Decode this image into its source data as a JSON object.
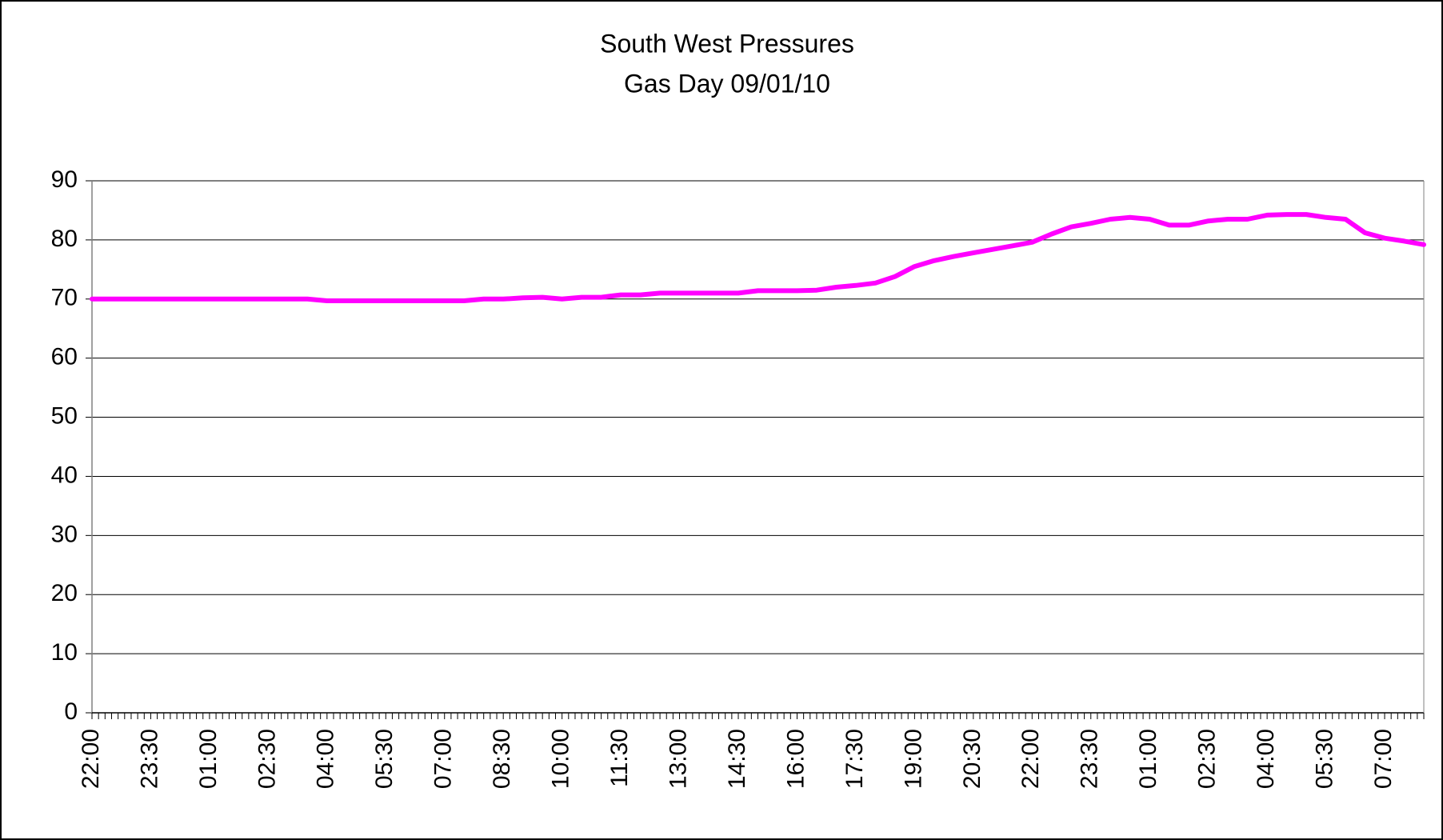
{
  "chart_data": {
    "type": "line",
    "title": "South West Pressures",
    "subtitle": "Gas Day 09/01/10",
    "categories": [
      "22:00",
      null,
      null,
      "23:30",
      null,
      null,
      "01:00",
      null,
      null,
      "02:30",
      null,
      null,
      "04:00",
      null,
      null,
      "05:30",
      null,
      null,
      "07:00",
      null,
      null,
      "08:30",
      null,
      null,
      "10:00",
      null,
      null,
      "11:30",
      null,
      null,
      "13:00",
      null,
      null,
      "14:30",
      null,
      null,
      "16:00",
      null,
      null,
      "17:30",
      null,
      null,
      "19:00",
      null,
      null,
      "20:30",
      null,
      null,
      "22:00",
      null,
      null,
      "23:30",
      null,
      null,
      "01:00",
      null,
      null,
      "02:30",
      null,
      null,
      "04:00",
      null,
      null,
      "05:30",
      null,
      null,
      "07:00",
      null,
      null
    ],
    "series": [
      {
        "color": "#ff00ff",
        "values": [
          70,
          70,
          70,
          70,
          70,
          70,
          70,
          70,
          70,
          70,
          70,
          70,
          69.7,
          69.7,
          69.7,
          69.7,
          69.7,
          69.7,
          69.7,
          69.7,
          70,
          70,
          70.2,
          70.3,
          70,
          70.3,
          70.3,
          70.7,
          70.7,
          71,
          71,
          71,
          71,
          71,
          71.4,
          71.4,
          71.4,
          71.5,
          72,
          72.3,
          72.7,
          73.8,
          75.5,
          76.5,
          77.2,
          77.8,
          78.4,
          79,
          79.6,
          81,
          82.2,
          82.8,
          83.5,
          83.8,
          83.5,
          82.5,
          82.5,
          83.2,
          83.5,
          83.5,
          84.2,
          84.3,
          84.3,
          83.8,
          83.5,
          81.2,
          80.3,
          79.8,
          79.2
        ]
      }
    ],
    "ylim": [
      0,
      90
    ],
    "yticks": [
      0,
      10,
      20,
      30,
      40,
      50,
      60,
      70,
      80,
      90
    ],
    "grid": true
  }
}
